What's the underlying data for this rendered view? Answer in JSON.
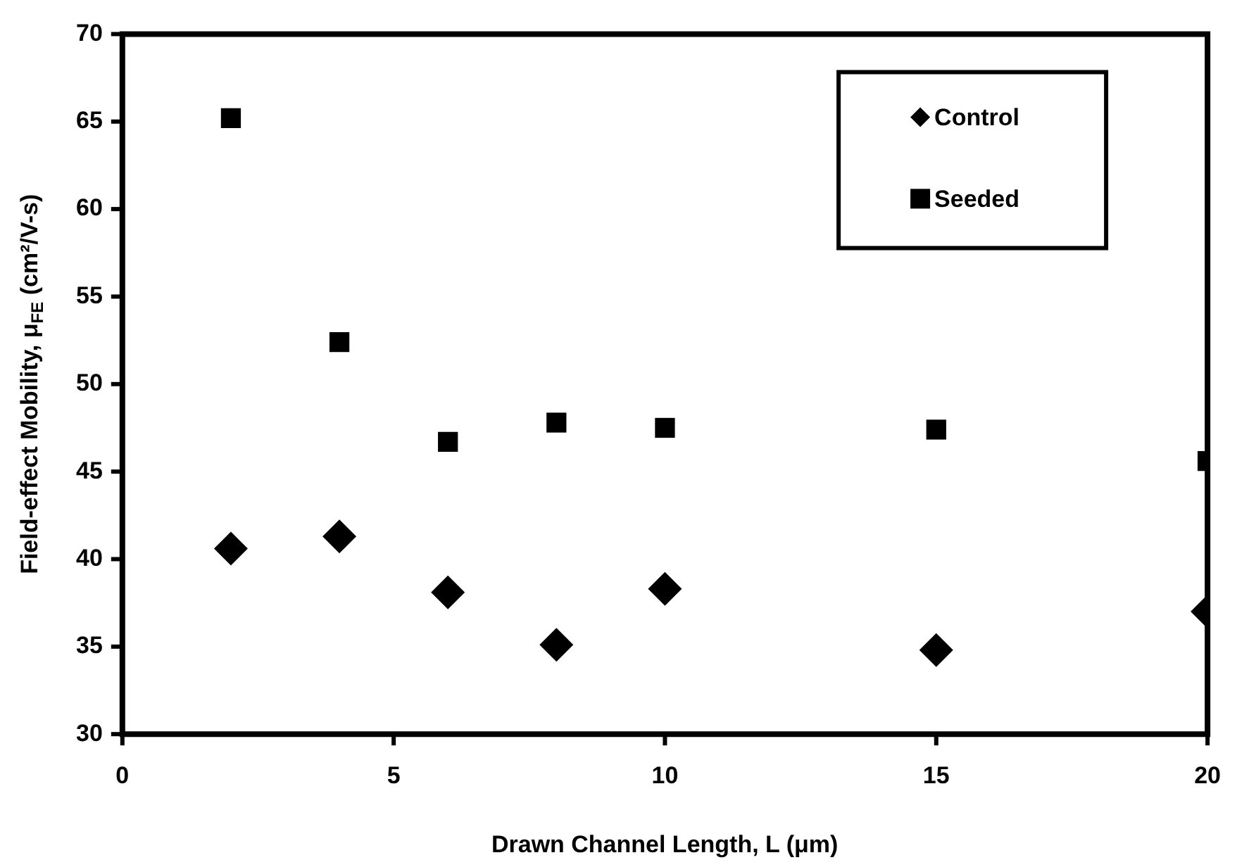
{
  "chart_data": {
    "type": "scatter",
    "xlabel": "Drawn Channel Length, L (μm)",
    "ylabel": "Field-effect Mobility, μ$_{FE}$ (cm²/V-s)",
    "x": [
      2,
      4,
      6,
      8,
      10,
      15,
      20
    ],
    "series": [
      {
        "name": "Control",
        "color": "#000000",
        "marker": "diamond",
        "values": [
          40.6,
          41.3,
          38.1,
          35.1,
          38.3,
          34.8,
          37.0
        ]
      },
      {
        "name": "Seeded",
        "color": "#000000",
        "marker": "square",
        "values": [
          65.2,
          52.4,
          46.7,
          47.8,
          47.5,
          47.4,
          45.6
        ]
      }
    ],
    "xlim": [
      0,
      20
    ],
    "xticks": [
      0,
      5,
      10,
      15,
      20
    ],
    "ylim": [
      30,
      70
    ],
    "yticks": [
      30,
      35,
      40,
      45,
      50,
      55,
      60,
      65,
      70
    ],
    "grid": false,
    "legend": "top right"
  }
}
